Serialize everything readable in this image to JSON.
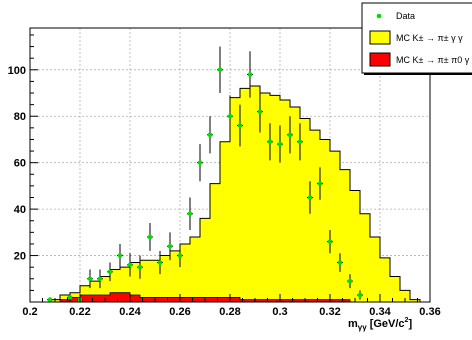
{
  "chart_data": {
    "type": "histogram",
    "x_axis": {
      "label": "m",
      "label_sub": "γγ",
      "label_unit": "[GeV/c",
      "label_unit_sup": "2",
      "label_unit_end": "]",
      "range": [
        0.2,
        0.36
      ],
      "tick_labels": [
        "0.2",
        "0.22",
        "0.24",
        "0.26",
        "0.28",
        "0.3",
        "0.32",
        "0.34",
        "0.36"
      ],
      "tick_values": [
        0.2,
        0.22,
        0.24,
        0.26,
        0.28,
        0.3,
        0.32,
        0.34,
        0.36
      ]
    },
    "y_axis": {
      "label": "",
      "range": [
        0,
        118
      ],
      "tick_labels": [
        "20",
        "40",
        "60",
        "80",
        "100"
      ],
      "tick_values": [
        20,
        40,
        60,
        80,
        100
      ]
    },
    "grid": true,
    "legend_placement": "top-right",
    "bin_edges": [
      0.204,
      0.208,
      0.212,
      0.216,
      0.22,
      0.224,
      0.228,
      0.232,
      0.236,
      0.24,
      0.244,
      0.248,
      0.252,
      0.256,
      0.26,
      0.264,
      0.268,
      0.272,
      0.276,
      0.28,
      0.284,
      0.288,
      0.292,
      0.296,
      0.3,
      0.304,
      0.308,
      0.312,
      0.316,
      0.32,
      0.324,
      0.328,
      0.332,
      0.336,
      0.34,
      0.344,
      0.348,
      0.352,
      0.356
    ],
    "series": [
      {
        "name": "MC K± → π± γ γ",
        "style": "filled-yellow",
        "color": "#ffff00",
        "values": [
          0,
          1,
          3,
          4,
          7,
          9,
          11,
          14,
          15,
          17,
          18,
          18,
          20,
          22,
          25,
          28,
          36,
          51,
          69,
          88,
          92,
          93,
          90,
          89,
          87,
          84,
          79,
          74,
          70,
          65,
          57,
          48,
          38,
          28,
          19,
          11,
          5,
          1
        ]
      },
      {
        "name": "MC K± → π± π0 γ",
        "style": "filled-red",
        "color": "#ff0000",
        "values": [
          0,
          0,
          1,
          2,
          3,
          3,
          3,
          4,
          4,
          3,
          2,
          2,
          2,
          2,
          2,
          2,
          2,
          2,
          2,
          2,
          1,
          1,
          1,
          1,
          1,
          1,
          1,
          1,
          1,
          1,
          1,
          0,
          0,
          0,
          0,
          0,
          0,
          0
        ]
      },
      {
        "name": "Data",
        "style": "points-green",
        "color": "#00dd00",
        "points": [
          {
            "x": 0.208,
            "y": 1,
            "err": 1
          },
          {
            "x": 0.216,
            "y": 2,
            "err": 2
          },
          {
            "x": 0.22,
            "y": 1,
            "err": 2
          },
          {
            "x": 0.224,
            "y": 10,
            "err": 4
          },
          {
            "x": 0.228,
            "y": 10,
            "err": 4
          },
          {
            "x": 0.232,
            "y": 13,
            "err": 4
          },
          {
            "x": 0.236,
            "y": 20,
            "err": 5
          },
          {
            "x": 0.24,
            "y": 16,
            "err": 5
          },
          {
            "x": 0.244,
            "y": 15,
            "err": 5
          },
          {
            "x": 0.248,
            "y": 28,
            "err": 6
          },
          {
            "x": 0.252,
            "y": 17,
            "err": 5
          },
          {
            "x": 0.256,
            "y": 24,
            "err": 6
          },
          {
            "x": 0.26,
            "y": 20,
            "err": 5
          },
          {
            "x": 0.264,
            "y": 38,
            "err": 7
          },
          {
            "x": 0.268,
            "y": 60,
            "err": 8
          },
          {
            "x": 0.272,
            "y": 72,
            "err": 8
          },
          {
            "x": 0.276,
            "y": 100,
            "err": 10
          },
          {
            "x": 0.28,
            "y": 80,
            "err": 9
          },
          {
            "x": 0.284,
            "y": 76,
            "err": 9
          },
          {
            "x": 0.288,
            "y": 98,
            "err": 10
          },
          {
            "x": 0.292,
            "y": 82,
            "err": 9
          },
          {
            "x": 0.296,
            "y": 69,
            "err": 8
          },
          {
            "x": 0.3,
            "y": 68,
            "err": 8
          },
          {
            "x": 0.304,
            "y": 72,
            "err": 8
          },
          {
            "x": 0.308,
            "y": 69,
            "err": 8
          },
          {
            "x": 0.312,
            "y": 45,
            "err": 7
          },
          {
            "x": 0.316,
            "y": 51,
            "err": 7
          },
          {
            "x": 0.32,
            "y": 26,
            "err": 5
          },
          {
            "x": 0.324,
            "y": 17,
            "err": 4
          },
          {
            "x": 0.328,
            "y": 9,
            "err": 3
          },
          {
            "x": 0.332,
            "y": 3,
            "err": 2
          }
        ]
      }
    ],
    "legend": [
      {
        "label": "Data",
        "style": "points-green",
        "color": "#00dd00"
      },
      {
        "label": "MC K± → π± γ γ",
        "style": "filled-yellow",
        "color": "#ffff00"
      },
      {
        "label": "MC K± → π± π0 γ",
        "style": "filled-red",
        "color": "#ff0000"
      }
    ]
  }
}
